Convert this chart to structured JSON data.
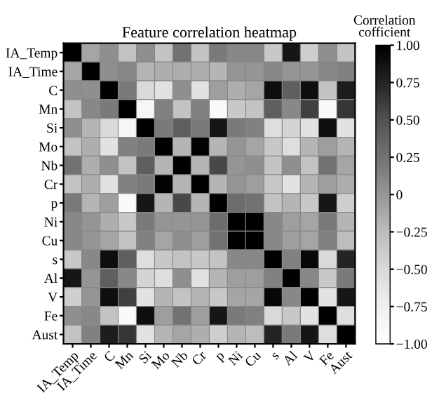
{
  "chart_data": {
    "type": "heatmap",
    "title": "Feature correlation heatmap",
    "clabel": "Correlation\ncofficient",
    "categories": [
      "IA_Temp",
      "IA_Time",
      "C",
      "Mn",
      "Si",
      "Mo",
      "Nb",
      "Cr",
      "p",
      "Ni",
      "Cu",
      "s",
      "Al",
      "V",
      "Fe",
      "Aust"
    ],
    "y_categories": [
      "IA_Temp",
      "IA_Time",
      "C",
      "Mn",
      "Si",
      "Mo",
      "Nb",
      "Cr",
      "p",
      "Ni",
      "Cu",
      "s",
      "Al",
      "V",
      "Fe",
      "Aust"
    ],
    "cells": [
      [
        1,
        -0.1,
        0.05,
        -0.3,
        0.05,
        -0.3,
        0.25,
        -0.3,
        0.2,
        0.1,
        0.1,
        -0.35,
        0.85,
        -0.4,
        0.05,
        -0.3
      ],
      [
        -0.1,
        1,
        0.05,
        0.1,
        -0.2,
        -0.15,
        -0.15,
        -0.15,
        -0.2,
        0,
        0,
        0.1,
        0,
        0,
        0.1,
        0.15
      ],
      [
        0.05,
        0.05,
        1,
        0.2,
        -0.5,
        -0.6,
        0.05,
        -0.6,
        -0.05,
        -0.15,
        -0.1,
        0.9,
        0.4,
        0.9,
        -0.3,
        0.8
      ],
      [
        -0.3,
        0.1,
        0.2,
        1,
        -0.85,
        0.15,
        -0.3,
        0.15,
        -0.9,
        -0.35,
        -0.3,
        0.4,
        0.1,
        0.6,
        -0.9,
        0.65
      ],
      [
        0.05,
        -0.2,
        -0.5,
        -0.85,
        1,
        0.2,
        0.4,
        0.2,
        0.85,
        0.2,
        0.15,
        -0.55,
        -0.45,
        -0.6,
        0.9,
        -0.6
      ],
      [
        -0.3,
        -0.15,
        -0.6,
        0.15,
        0.2,
        1,
        -0.2,
        0.98,
        -0.2,
        0,
        -0.1,
        -0.35,
        -0.55,
        -0.2,
        -0.05,
        -0.2
      ],
      [
        0.25,
        -0.15,
        0.05,
        -0.3,
        0.4,
        -0.2,
        1,
        -0.2,
        0.55,
        0,
        0.05,
        -0.3,
        0.05,
        -0.3,
        0.25,
        -0.1
      ],
      [
        -0.3,
        -0.15,
        -0.6,
        0.15,
        0.2,
        0.98,
        -0.2,
        1,
        -0.2,
        0,
        -0.05,
        -0.35,
        -0.6,
        -0.2,
        -0.05,
        -0.15
      ],
      [
        0.2,
        -0.2,
        -0.05,
        -0.9,
        0.85,
        -0.2,
        0.55,
        -0.2,
        1,
        0.3,
        0.25,
        -0.3,
        -0.2,
        -0.35,
        0.85,
        -0.4
      ],
      [
        0.1,
        0,
        -0.15,
        -0.35,
        0.2,
        0,
        0,
        0,
        0.3,
        1,
        1,
        0.1,
        -0.05,
        -0.1,
        0.2,
        -0.2
      ],
      [
        0.1,
        0,
        -0.1,
        -0.3,
        0.15,
        -0.1,
        0.05,
        -0.05,
        0.25,
        1,
        1,
        0.1,
        -0.05,
        -0.1,
        0.15,
        -0.25
      ],
      [
        -0.35,
        0.1,
        0.9,
        0.4,
        -0.55,
        -0.35,
        -0.3,
        -0.35,
        -0.3,
        0.1,
        0.1,
        1,
        0.15,
        0.95,
        -0.5,
        0.75
      ],
      [
        0.85,
        0,
        0.4,
        0.1,
        -0.45,
        -0.55,
        0.05,
        -0.6,
        -0.2,
        -0.05,
        -0.05,
        0.15,
        1,
        0.1,
        -0.35,
        0.2
      ],
      [
        -0.4,
        0,
        0.9,
        0.6,
        -0.6,
        -0.2,
        -0.3,
        -0.2,
        -0.35,
        -0.1,
        -0.1,
        0.95,
        0.1,
        1,
        -0.6,
        0.85
      ],
      [
        0.05,
        0.1,
        -0.3,
        -0.9,
        0.9,
        -0.05,
        0.25,
        -0.05,
        0.85,
        0.2,
        0.15,
        -0.5,
        -0.35,
        -0.6,
        1,
        -0.55
      ],
      [
        -0.3,
        0.15,
        0.8,
        0.65,
        -0.6,
        -0.2,
        -0.1,
        -0.15,
        -0.4,
        -0.2,
        -0.25,
        0.75,
        0.2,
        0.85,
        -0.55,
        1
      ]
    ],
    "clim": [
      -1,
      1
    ],
    "cticks": [
      {
        "value": -1,
        "label": "−1.00"
      },
      {
        "value": -0.75,
        "label": "−0.75"
      },
      {
        "value": -0.5,
        "label": "−0.50"
      },
      {
        "value": -0.25,
        "label": "−0.25"
      },
      0,
      {
        "value": 0.25,
        "label": "0.25"
      },
      {
        "value": 0.5,
        "label": "0.50"
      },
      {
        "value": 0.75,
        "label": "0.75"
      },
      {
        "value": 1,
        "label": "1.00"
      }
    ]
  }
}
